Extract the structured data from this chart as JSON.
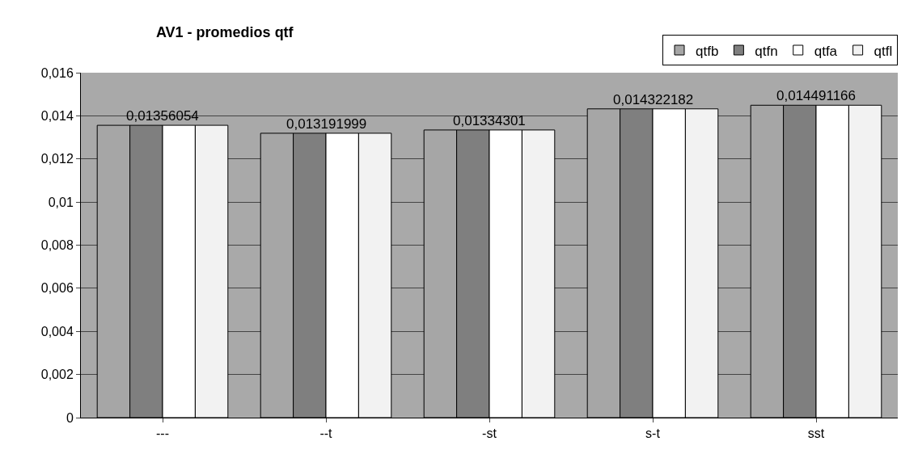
{
  "chart_data": {
    "type": "bar",
    "title": "AV1 - promedios qtf",
    "categories": [
      "---",
      "--t",
      "-st",
      "s-t",
      "sst"
    ],
    "series": [
      {
        "name": "qtfb",
        "color": "#a6a6a6",
        "values": [
          0.01356054,
          0.013191999,
          0.01334301,
          0.014322182,
          0.014491166
        ]
      },
      {
        "name": "qtfn",
        "color": "#7f7f7f",
        "values": [
          0.01356054,
          0.013191999,
          0.01334301,
          0.014322182,
          0.014491166
        ]
      },
      {
        "name": "qtfa",
        "color": "#ffffff",
        "values": [
          0.01356054,
          0.013191999,
          0.01334301,
          0.014322182,
          0.014491166
        ]
      },
      {
        "name": "qtfl",
        "color": "#f2f2f2",
        "values": [
          0.01356054,
          0.013191999,
          0.01334301,
          0.014322182,
          0.014491166
        ]
      }
    ],
    "annotations": [
      {
        "text": "0,01356054",
        "x": "---",
        "y": 0.01356054
      },
      {
        "text": "0,013191999",
        "x": "--t",
        "y": 0.013191999
      },
      {
        "text": "0,01334301",
        "x": "-st",
        "y": 0.01334301
      },
      {
        "text": "0,014322182",
        "x": "s-t",
        "y": 0.014322182
      },
      {
        "text": "0,014491166",
        "x": "sst",
        "y": 0.014491166
      }
    ],
    "ylim": [
      0,
      0.016
    ],
    "yticks": [
      {
        "value": 0,
        "label": "0"
      },
      {
        "value": 0.002,
        "label": "0,002"
      },
      {
        "value": 0.004,
        "label": "0,004"
      },
      {
        "value": 0.006,
        "label": "0,006"
      },
      {
        "value": 0.008,
        "label": "0,008"
      },
      {
        "value": 0.01,
        "label": "0,01"
      },
      {
        "value": 0.012,
        "label": "0,012"
      },
      {
        "value": 0.014,
        "label": "0,014"
      },
      {
        "value": 0.016,
        "label": "0,016"
      }
    ],
    "grid": "y",
    "legend": "top right"
  }
}
